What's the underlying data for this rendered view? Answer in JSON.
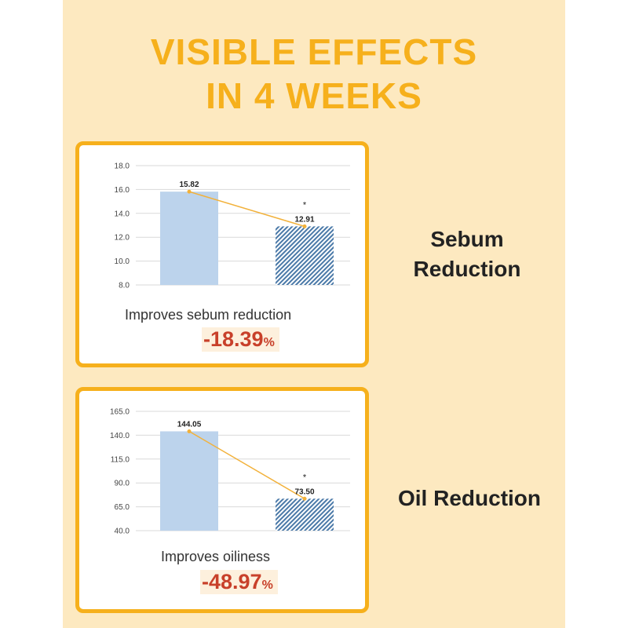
{
  "headline": [
    "VISIBLE EFFECTS",
    "IN 4 WEEKS"
  ],
  "panels": [
    {
      "side_label": [
        "Sebum",
        "Reduction"
      ],
      "caption": "Improves sebum reduction",
      "change_value": "-18.39",
      "change_unit": "%"
    },
    {
      "side_label": [
        "Oil Reduction"
      ],
      "caption": "Improves oiliness",
      "change_value": "-48.97",
      "change_unit": "%"
    }
  ],
  "chart_data": [
    {
      "type": "bar",
      "values": [
        15.82,
        12.91
      ],
      "value_labels": [
        "15.82",
        "12.91"
      ],
      "significance_markers": [
        "",
        "*"
      ],
      "yticks": [
        "18.0",
        "16.0",
        "14.0",
        "12.0",
        "10.0",
        "8.0"
      ],
      "ylim": [
        8,
        18
      ],
      "colors": [
        "#bcd3ec",
        "#4a79a8"
      ],
      "line_color": "#f2b13a"
    },
    {
      "type": "bar",
      "values": [
        144.05,
        73.5
      ],
      "value_labels": [
        "144.05",
        "73.50"
      ],
      "significance_markers": [
        "",
        "*"
      ],
      "yticks": [
        "165.0",
        "140.0",
        "115.0",
        "90.0",
        "65.0",
        "40.0"
      ],
      "ylim": [
        40,
        165
      ],
      "colors": [
        "#bcd3ec",
        "#4a79a8"
      ],
      "line_color": "#f2b13a"
    }
  ]
}
